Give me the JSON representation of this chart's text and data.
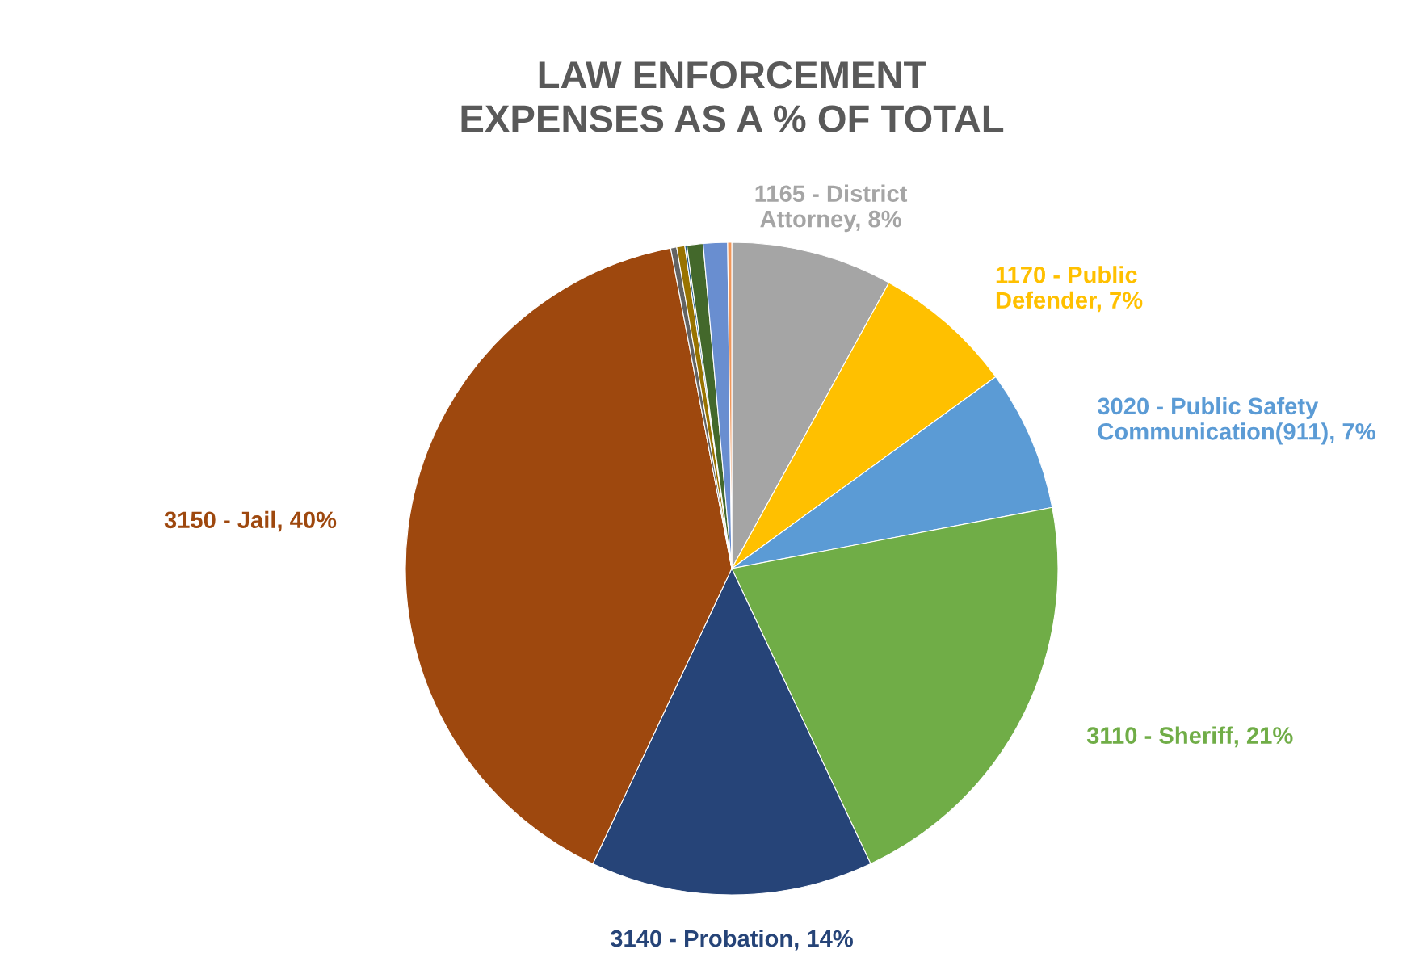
{
  "chart_data": {
    "type": "pie",
    "title": "LAW ENFORCEMENT\nEXPENSES AS A % OF TOTAL",
    "categories": [
      "1165 - District\nAttorney",
      "1170 - Public\nDefender",
      "3020 - Public Safety\nCommunication(911)",
      "3110 - Sheriff",
      "3140 - Probation",
      "3150 - Jail",
      null,
      null,
      null,
      null,
      null,
      null
    ],
    "values": [
      8,
      7,
      7,
      21,
      14,
      40,
      0.3,
      0.4,
      0.1,
      0.8,
      1.2,
      0.2
    ],
    "value_labels": [
      "8%",
      "7%",
      "7%",
      "21%",
      "14%",
      "40%",
      null,
      null,
      null,
      null,
      null,
      null
    ],
    "colors": [
      "#a5a5a5",
      "#ffc000",
      "#5b9bd5",
      "#70ad47",
      "#264478",
      "#9e480e",
      "#636363",
      "#997300",
      "#255e91",
      "#43682b",
      "#698ed0",
      "#f1975a"
    ]
  }
}
